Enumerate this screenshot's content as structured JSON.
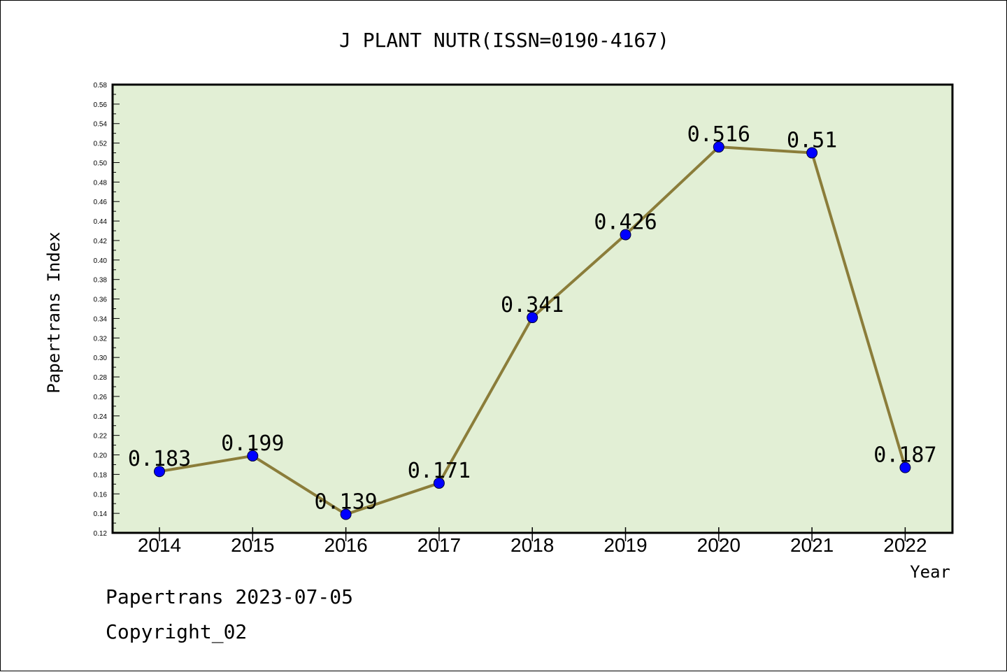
{
  "chart_data": {
    "type": "line",
    "title": "J PLANT NUTR(ISSN=0190-4167)",
    "xlabel": "Year",
    "ylabel": "Papertrans Index",
    "categories": [
      "2014",
      "2015",
      "2016",
      "2017",
      "2018",
      "2019",
      "2020",
      "2021",
      "2022"
    ],
    "values": [
      0.183,
      0.199,
      0.139,
      0.171,
      0.341,
      0.426,
      0.516,
      0.51,
      0.187
    ],
    "data_labels": [
      "0.183",
      "0.199",
      "0.139",
      "0.171",
      "0.341",
      "0.426",
      "0.516",
      "0.51",
      "0.187"
    ],
    "ylim": [
      0.12,
      0.58
    ],
    "yticks": [
      "0.12",
      "0.14",
      "0.16",
      "0.18",
      "0.20",
      "0.22",
      "0.24",
      "0.26",
      "0.28",
      "0.30",
      "0.32",
      "0.34",
      "0.36",
      "0.38",
      "0.40",
      "0.42",
      "0.44",
      "0.46",
      "0.48",
      "0.50",
      "0.52",
      "0.54",
      "0.56",
      "0.58"
    ],
    "grid": false,
    "colors": {
      "plot_background": "#e2efd5",
      "line": "#8b7d3a",
      "marker": "#0000ff"
    }
  },
  "footer": {
    "line1": "Papertrans 2023-07-05",
    "line2": "Copyright_02"
  }
}
